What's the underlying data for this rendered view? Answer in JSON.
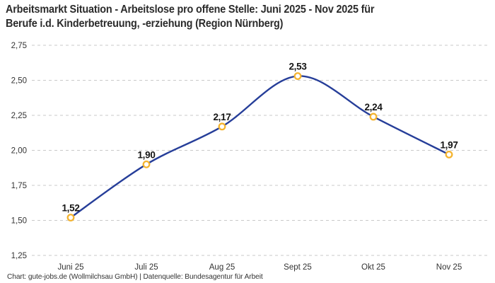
{
  "header": {
    "title_lines": [
      "Arbeitsmarkt Situation - Arbeitslose pro offene Stelle: Juni 2025 - Nov 2025 für",
      "Berufe i.d. Kinderbetreuung, -erziehung (Region Nürnberg)"
    ]
  },
  "footer": {
    "credit": "Chart: gute-jobs.de (Wollmilchsau GmbH) | Datenquelle: Bundesagentur für Arbeit"
  },
  "chart_data": {
    "type": "line",
    "title": "Arbeitsmarkt Situation - Arbeitslose pro offene Stelle: Juni 2025 - Nov 2025 für Berufe i.d. Kinderbetreuung, -erziehung (Region Nürnberg)",
    "categories": [
      "Juni 25",
      "Juli 25",
      "Aug 25",
      "Sept 25",
      "Okt 25",
      "Nov 25"
    ],
    "values": [
      1.52,
      1.9,
      2.17,
      2.53,
      2.24,
      1.97
    ],
    "value_labels": [
      "1,52",
      "1,90",
      "2,17",
      "2,53",
      "2,24",
      "1,97"
    ],
    "xlabel": "",
    "ylabel": "",
    "ylim": [
      1.25,
      2.75
    ],
    "yticks": [
      2.75,
      2.5,
      2.25,
      2.0,
      1.75,
      1.5,
      1.25
    ],
    "ytick_labels": [
      "2,75",
      "2,50",
      "2,25",
      "2,00",
      "1,75",
      "1,50",
      "1,25"
    ],
    "grid": "dashed-horizontal",
    "legend": "none",
    "line_color": "#263e99",
    "marker_stroke_color": "#f4b430",
    "marker_fill_color": "#ffffff",
    "grid_color": "#c9c9c9",
    "tick_label_color": "#333333",
    "data_label_color": "#141414"
  }
}
